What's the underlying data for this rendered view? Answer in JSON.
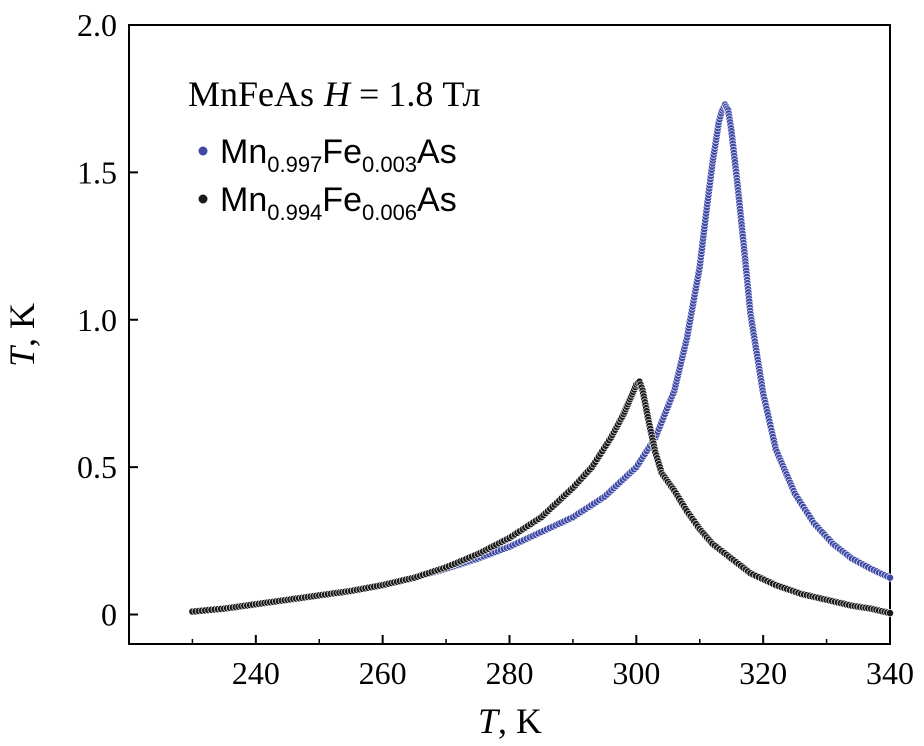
{
  "chart_data": {
    "type": "scatter",
    "title": "",
    "legend_title": {
      "sample": "MnFeAs",
      "field_symbol": "H",
      "field_rest": " = 1.8 Тл"
    },
    "xlabel": {
      "symbol": "T",
      "unit": ", K"
    },
    "ylabel": {
      "symbol": "T",
      "unit": ", K"
    },
    "xlim": [
      220,
      340
    ],
    "ylim": [
      -0.1,
      2.0
    ],
    "xticks": [
      240,
      260,
      280,
      300,
      320,
      340
    ],
    "yticks": [
      0,
      0.5,
      1.0,
      1.5,
      2.0
    ],
    "xtick_labels": [
      "240",
      "260",
      "280",
      "300",
      "320",
      "340"
    ],
    "ytick_labels": [
      "0",
      "0.5",
      "1.0",
      "1.5",
      "2.0"
    ],
    "legend_position": "top-left",
    "grid": false,
    "series": [
      {
        "name": "Mn0.997Fe0.003As",
        "label_parts": {
          "a": "Mn",
          "a_sub": "0.997",
          "b": "Fe",
          "b_sub": "0.003",
          "c": "As"
        },
        "color": "#3f4aa6",
        "x": [
          230,
          235,
          240,
          245,
          250,
          255,
          260,
          265,
          270,
          275,
          280,
          285,
          290,
          295,
          300,
          303,
          306,
          308,
          310,
          311,
          312,
          313,
          313.5,
          314,
          314.5,
          315,
          316,
          317,
          318,
          320,
          322,
          325,
          328,
          331,
          334,
          337,
          340
        ],
        "y": [
          0.01,
          0.02,
          0.035,
          0.05,
          0.065,
          0.08,
          0.1,
          0.125,
          0.155,
          0.19,
          0.23,
          0.28,
          0.33,
          0.4,
          0.5,
          0.6,
          0.76,
          0.94,
          1.18,
          1.36,
          1.53,
          1.67,
          1.71,
          1.73,
          1.71,
          1.64,
          1.45,
          1.24,
          1.02,
          0.75,
          0.56,
          0.41,
          0.31,
          0.24,
          0.19,
          0.155,
          0.125
        ]
      },
      {
        "name": "Mn0.994Fe0.006As",
        "label_parts": {
          "a": "Mn",
          "a_sub": "0.994",
          "b": "Fe",
          "b_sub": "0.006",
          "c": "As"
        },
        "color": "#1a1a1a",
        "x": [
          230,
          235,
          240,
          245,
          250,
          255,
          260,
          265,
          270,
          275,
          280,
          285,
          290,
          293,
          296,
          298,
          299,
          300,
          300.5,
          301,
          302,
          303,
          304,
          305,
          306,
          308,
          310,
          312,
          315,
          318,
          322,
          326,
          330,
          334,
          337,
          340
        ],
        "y": [
          0.01,
          0.02,
          0.035,
          0.05,
          0.065,
          0.08,
          0.1,
          0.125,
          0.16,
          0.205,
          0.26,
          0.33,
          0.43,
          0.5,
          0.6,
          0.68,
          0.73,
          0.78,
          0.79,
          0.76,
          0.65,
          0.55,
          0.48,
          0.45,
          0.42,
          0.35,
          0.29,
          0.24,
          0.19,
          0.14,
          0.1,
          0.07,
          0.05,
          0.03,
          0.02,
          0.005
        ]
      }
    ]
  }
}
